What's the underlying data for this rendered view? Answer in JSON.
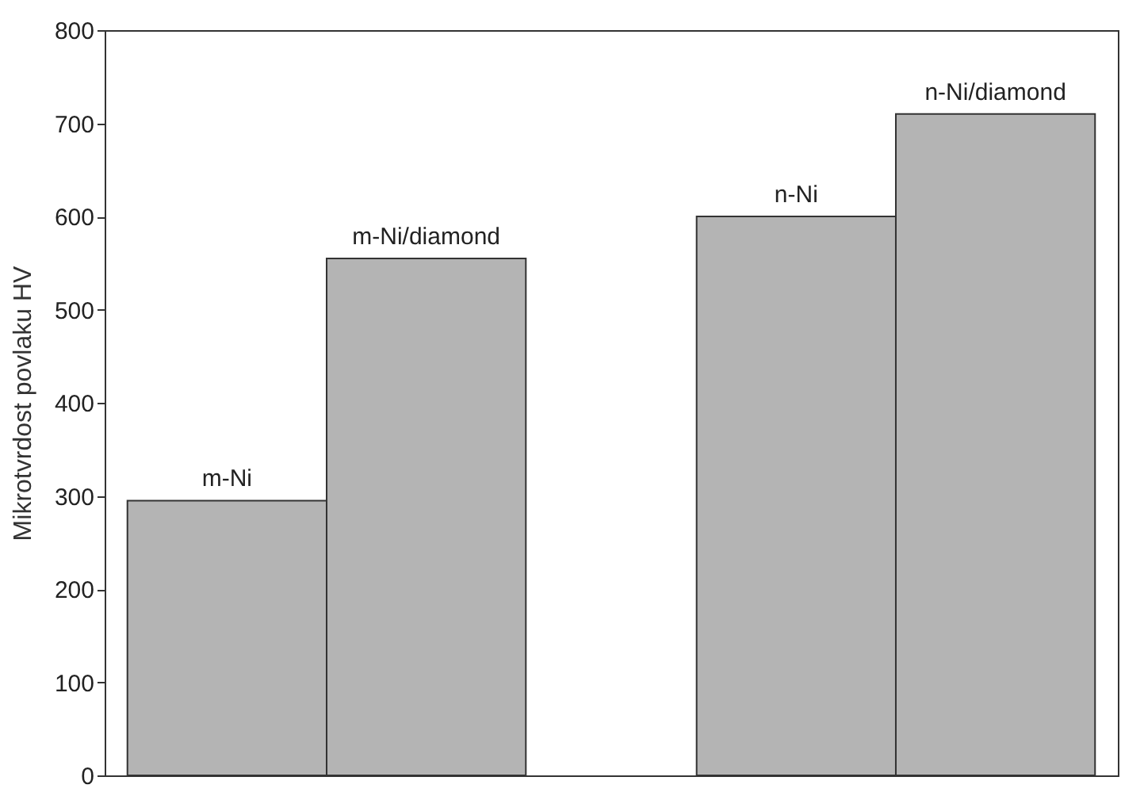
{
  "chart_data": {
    "type": "bar",
    "categories": [
      null,
      null,
      null,
      null
    ],
    "values": [
      295,
      555,
      600,
      710
    ],
    "color": "#b4b4b4",
    "annotations": [
      "m-Ni",
      "m-Ni/diamond",
      "n-Ni",
      "n-Ni/diamond"
    ],
    "ylabel": "Mikrotvrdost povlaku HV",
    "ylim": [
      0,
      800
    ],
    "yticks": [
      0,
      100,
      200,
      300,
      400,
      500,
      600,
      700,
      800
    ],
    "tick_labels": "y",
    "grid": false
  }
}
